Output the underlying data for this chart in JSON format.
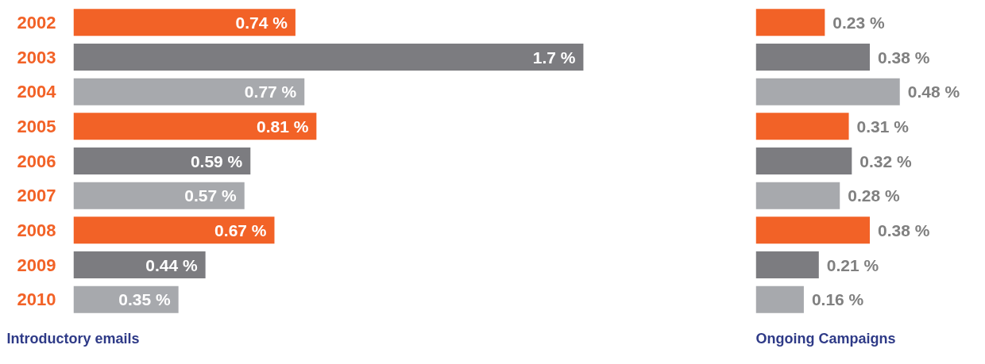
{
  "chart_data": [
    {
      "type": "bar",
      "orientation": "horizontal",
      "title": "Introductory emails",
      "categories": [
        "2002",
        "2003",
        "2004",
        "2005",
        "2006",
        "2007",
        "2008",
        "2009",
        "2010"
      ],
      "values": [
        0.74,
        1.7,
        0.77,
        0.81,
        0.59,
        0.57,
        0.67,
        0.44,
        0.35
      ],
      "colors": [
        "#f26227",
        "#7c7c80",
        "#a7a9ad",
        "#f26227",
        "#7c7c80",
        "#a7a9ad",
        "#f26227",
        "#7c7c80",
        "#a7a9ad"
      ],
      "value_labels": [
        "0.74 %",
        "1.7 %",
        "0.77 %",
        "0.81 %",
        "0.59 %",
        "0.57 %",
        "0.67 %",
        "0.44 %",
        "0.35 %"
      ],
      "tick_labels": "y",
      "grid": false
    },
    {
      "type": "bar",
      "orientation": "horizontal",
      "title": "Ongoing Campaigns",
      "categories": [
        null,
        null,
        null,
        null,
        null,
        null,
        null,
        null,
        null
      ],
      "values": [
        0.23,
        0.38,
        0.48,
        0.31,
        0.32,
        0.28,
        0.38,
        0.21,
        0.16
      ],
      "colors": [
        "#f26227",
        "#7c7c80",
        "#a7a9ad",
        "#f26227",
        "#7c7c80",
        "#a7a9ad",
        "#f26227",
        "#7c7c80",
        "#a7a9ad"
      ],
      "value_labels": [
        "0.23 %",
        "0.38 %",
        "0.48 %",
        "0.31 %",
        "0.32 %",
        "0.28 %",
        "0.38 %",
        "0.21 %",
        "0.16 %"
      ],
      "tick_labels": false,
      "grid": false
    }
  ]
}
